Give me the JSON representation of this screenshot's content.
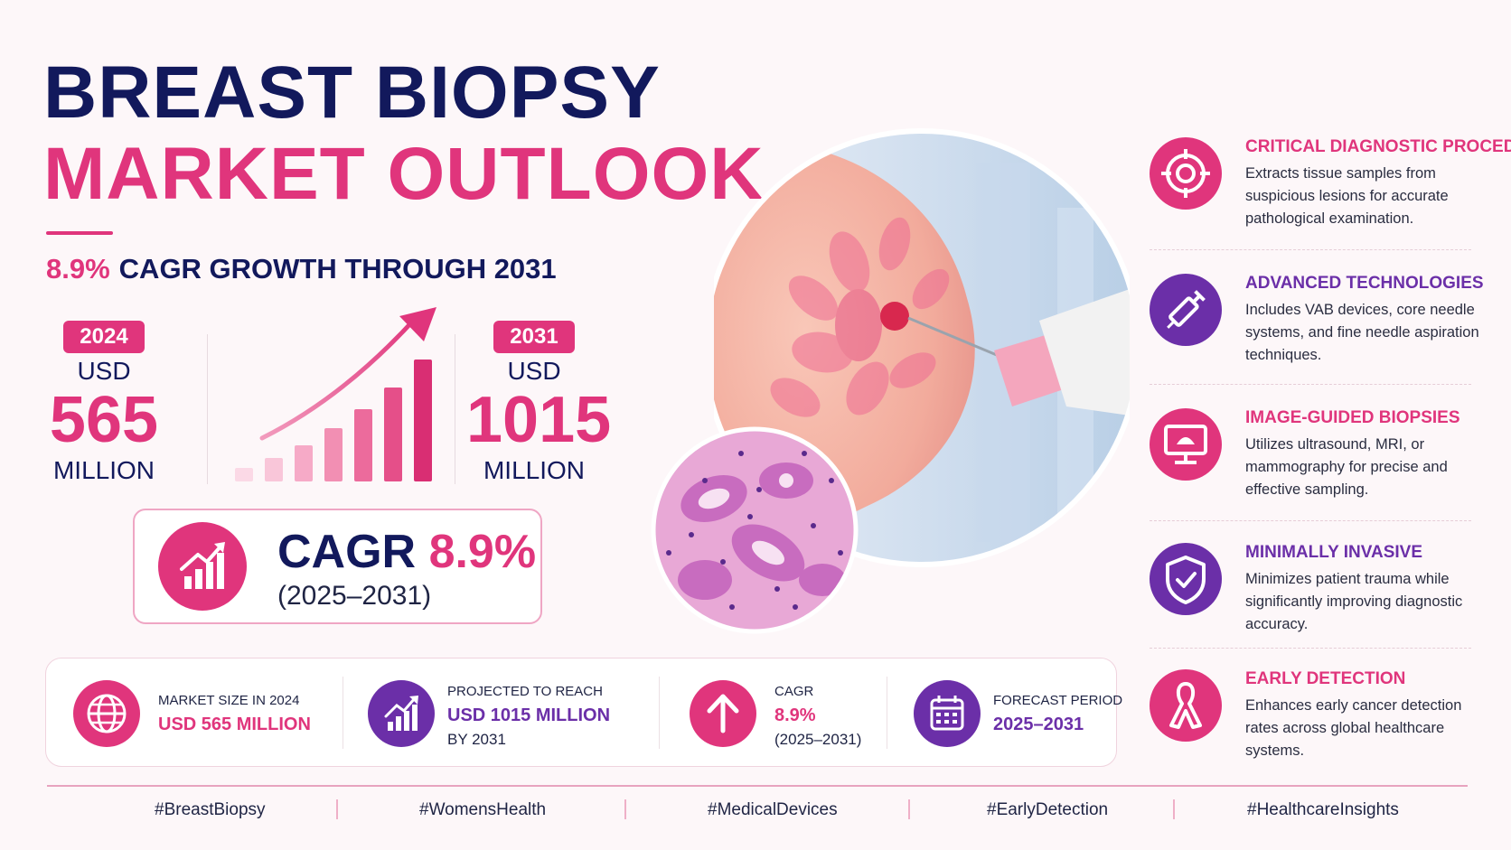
{
  "title": {
    "line1": "BREAST BIOPSY",
    "line2": "MARKET OUTLOOK"
  },
  "cagr_headline": {
    "pct": "8.9%",
    "text": "CAGR GROWTH THROUGH 2031"
  },
  "stat_2024": {
    "year": "2024",
    "currency": "USD",
    "value": "565",
    "unit": "MILLION"
  },
  "stat_2031": {
    "year": "2031",
    "currency": "USD",
    "value": "1015",
    "unit": "MILLION"
  },
  "cagr_card": {
    "label": "CAGR",
    "pct": "8.9%",
    "period": "(2025–2031)"
  },
  "bottom_stats": [
    {
      "label": "MARKET SIZE IN 2024",
      "value": "USD 565 MILLION",
      "sub": ""
    },
    {
      "label": "PROJECTED TO REACH",
      "value": "USD 1015 MILLION",
      "sub": "BY 2031"
    },
    {
      "label": "CAGR",
      "value": "8.9%",
      "sub": "(2025–2031)"
    },
    {
      "label": "FORECAST PERIOD",
      "value": "2025–2031",
      "sub": ""
    }
  ],
  "features": [
    {
      "title": "CRITICAL DIAGNOSTIC PROCEDURE",
      "desc": "Extracts tissue samples from suspicious lesions for accurate pathological examination."
    },
    {
      "title": "ADVANCED TECHNOLOGIES",
      "desc": "Includes VAB devices, core needle systems, and fine needle aspiration techniques."
    },
    {
      "title": "IMAGE-GUIDED BIOPSIES",
      "desc": "Utilizes ultrasound, MRI, or mammography for precise and effective sampling."
    },
    {
      "title": "MINIMALLY INVASIVE",
      "desc": "Minimizes patient trauma while significantly improving diagnostic accuracy."
    },
    {
      "title": "EARLY DETECTION",
      "desc": "Enhances early cancer detection rates across global healthcare systems."
    }
  ],
  "hashtags": [
    "#BreastBiopsy",
    "#WomensHealth",
    "#MedicalDevices",
    "#EarlyDetection",
    "#HealthcareInsights"
  ],
  "colors": {
    "navy": "#12195c",
    "pink": "#e0357c",
    "purple": "#6b2fa8"
  }
}
